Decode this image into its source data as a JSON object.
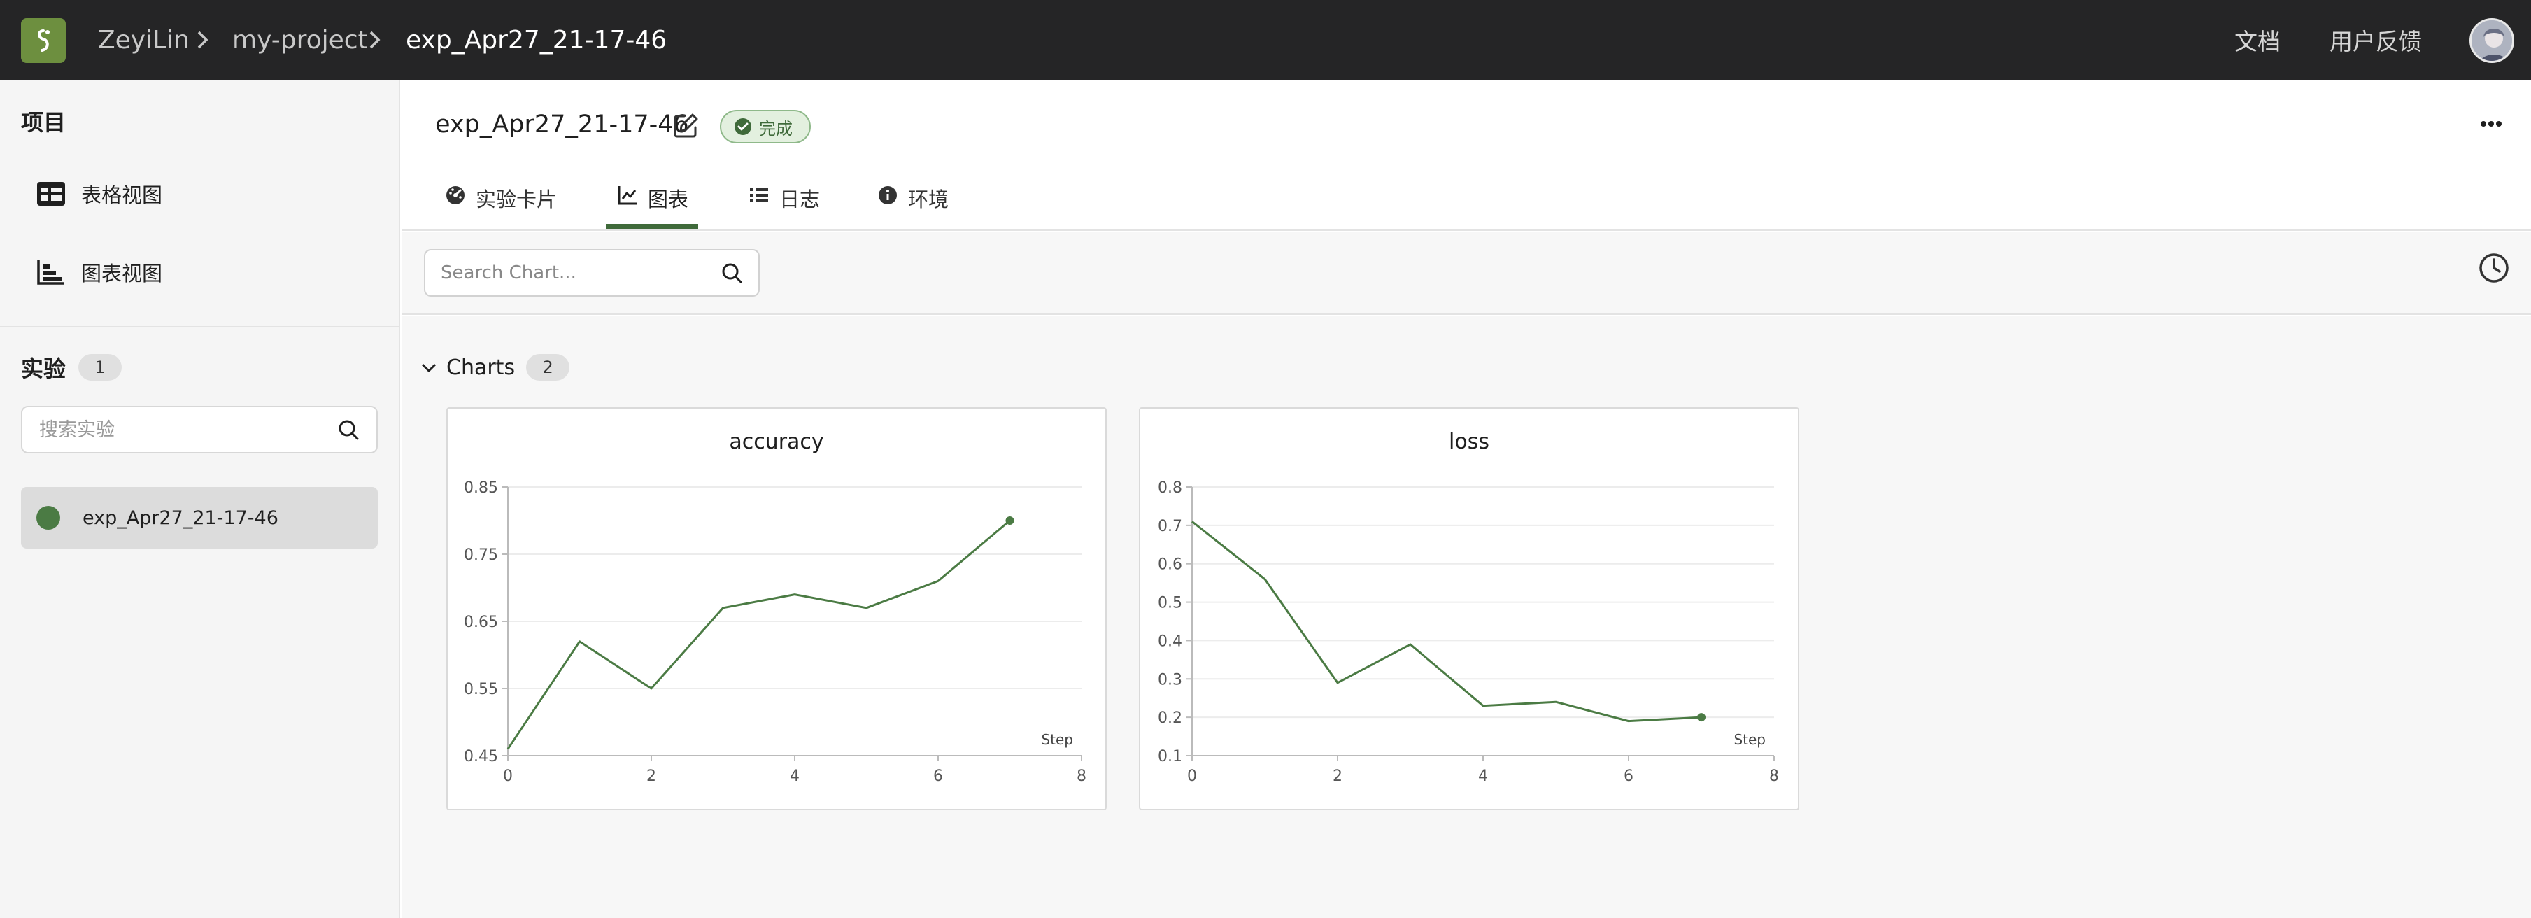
{
  "topbar": {
    "breadcrumbs": [
      "ZeyiLin",
      "my-project",
      "exp_Apr27_21-17-46"
    ],
    "links": [
      "文档",
      "用户反馈"
    ]
  },
  "sidebar": {
    "project_title": "项目",
    "views": [
      {
        "label": "表格视图",
        "icon": "table-icon"
      },
      {
        "label": "图表视图",
        "icon": "chart-view-icon"
      }
    ],
    "experiments_title": "实验",
    "experiments_count": "1",
    "search_placeholder": "搜索实验",
    "experiments": [
      {
        "name": "exp_Apr27_21-17-46",
        "color": "#4b7b44"
      }
    ]
  },
  "main": {
    "title": "exp_Apr27_21-17-46",
    "status": "完成",
    "tabs": [
      {
        "label": "实验卡片",
        "icon": "dashboard-icon"
      },
      {
        "label": "图表",
        "icon": "line-chart-icon",
        "active": true
      },
      {
        "label": "日志",
        "icon": "list-icon"
      },
      {
        "label": "环境",
        "icon": "info-icon"
      }
    ],
    "chart_search_placeholder": "Search Chart...",
    "group": {
      "label": "Charts",
      "count": "2"
    }
  },
  "colors": {
    "accent": "#3f6a3a",
    "series": "#4b7b44",
    "topbar": "#252526"
  },
  "chart_data": [
    {
      "type": "line",
      "title": "accuracy",
      "xlabel": "Step",
      "ylabel": "",
      "x": [
        0,
        1,
        2,
        3,
        4,
        5,
        6,
        7
      ],
      "series": [
        {
          "values": [
            0.46,
            0.62,
            0.55,
            0.67,
            0.69,
            0.67,
            0.71,
            0.8
          ]
        }
      ],
      "xlim": [
        0,
        8
      ],
      "ylim": [
        0.45,
        0.85
      ],
      "xticks": [
        "0",
        "2",
        "4",
        "6",
        "8"
      ],
      "yticks": [
        "0.45",
        "0.55",
        "0.65",
        "0.75",
        "0.85"
      ],
      "grid": true
    },
    {
      "type": "line",
      "title": "loss",
      "xlabel": "Step",
      "ylabel": "",
      "x": [
        0,
        1,
        2,
        3,
        4,
        5,
        6,
        7
      ],
      "series": [
        {
          "values": [
            0.71,
            0.56,
            0.29,
            0.39,
            0.23,
            0.24,
            0.19,
            0.2
          ]
        }
      ],
      "xlim": [
        0,
        8
      ],
      "ylim": [
        0.1,
        0.8
      ],
      "xticks": [
        "0",
        "2",
        "4",
        "6",
        "8"
      ],
      "yticks": [
        "0.1",
        "0.2",
        "0.3",
        "0.4",
        "0.5",
        "0.6",
        "0.7",
        "0.8"
      ],
      "grid": true
    }
  ]
}
